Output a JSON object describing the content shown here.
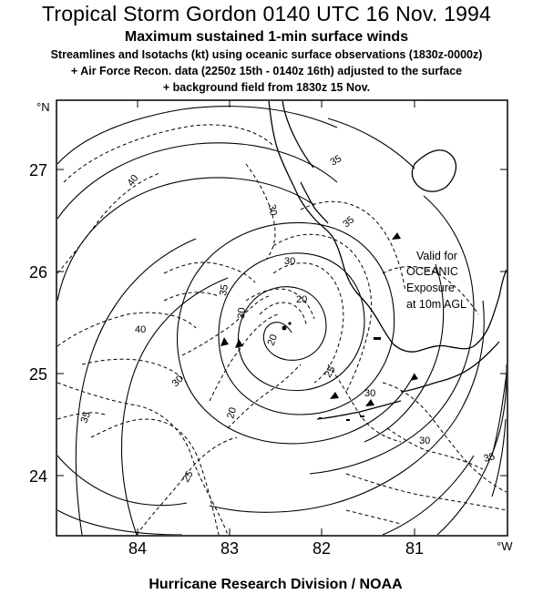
{
  "header": {
    "title": "Tropical Storm Gordon 0140 UTC 16 Nov. 1994",
    "subtitle": "Maximum sustained 1-min surface winds",
    "description_lines": [
      "Streamlines and Isotachs (kt) using oceanic surface observations (1830z-0000z)",
      "+ Air Force Recon. data (2250z 15th - 0140z 16th) adjusted to the surface",
      "+ background field from 1830z 15 Nov."
    ]
  },
  "map": {
    "lat_ticks": [
      "27",
      "26",
      "25",
      "24"
    ],
    "lat_unit": "°N",
    "lon_ticks": [
      "84",
      "83",
      "82",
      "81"
    ],
    "lon_unit": "°W",
    "isotach_labels": [
      "40",
      "40",
      "35",
      "35",
      "35",
      "30",
      "30",
      "30",
      "30",
      "30",
      "30",
      "25",
      "25",
      "20",
      "20",
      "20",
      "35",
      "35"
    ],
    "annotation": [
      "Valid for",
      "OCEANIC",
      "Exposure",
      "at 10m AGL"
    ]
  },
  "footer": "Hurricane Research Division / NOAA"
}
